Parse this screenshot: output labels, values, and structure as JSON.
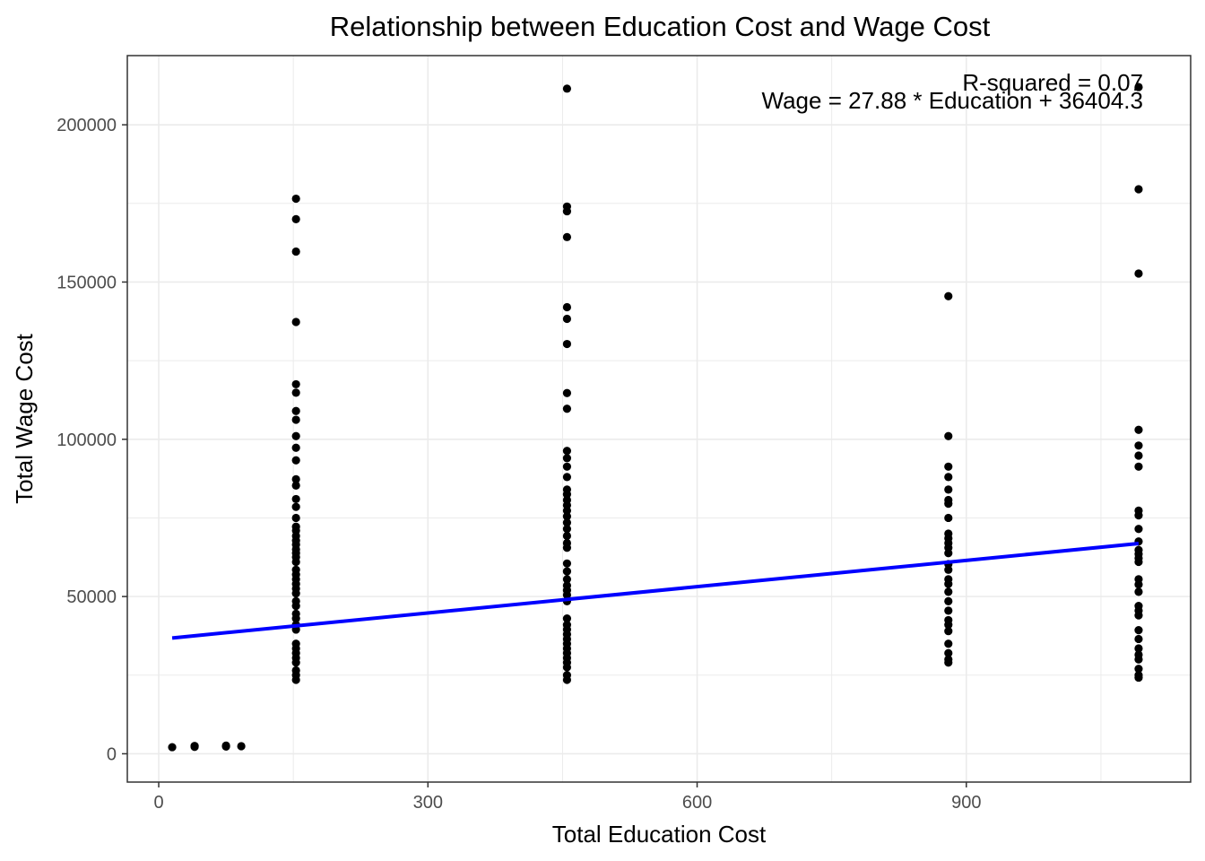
{
  "chart_data": {
    "type": "scatter",
    "title": "Relationship between Education Cost and Wage Cost",
    "xlabel": "Total Education Cost",
    "ylabel": "Total Wage Cost",
    "xlim": [
      -35,
      1150
    ],
    "ylim": [
      -9000,
      222000
    ],
    "x_ticks": [
      0,
      300,
      600,
      900
    ],
    "y_ticks": [
      0,
      50000,
      100000,
      150000,
      200000
    ],
    "grid": true,
    "annotations": {
      "r_squared": "R-squared = 0.07",
      "equation": "Wage = 27.88 * Education + 36404.3"
    },
    "colors": {
      "points": "#000000",
      "fit_line": "#0000ff",
      "grid": "#ebebeb",
      "panel_border": "#333333"
    },
    "fit_line": {
      "slope": 27.88,
      "intercept": 36404.3,
      "x_range": [
        15,
        1092
      ]
    },
    "series": [
      {
        "points": [
          [
            15,
            2100
          ],
          [
            40,
            2200
          ],
          [
            40,
            2500
          ],
          [
            75,
            2300
          ],
          [
            75,
            2600
          ],
          [
            92,
            2400
          ],
          [
            153,
            176500
          ],
          [
            153,
            170000
          ],
          [
            153,
            159700
          ],
          [
            153,
            137300
          ],
          [
            153,
            117500
          ],
          [
            153,
            114800
          ],
          [
            153,
            109000
          ],
          [
            153,
            106200
          ],
          [
            153,
            101000
          ],
          [
            153,
            97300
          ],
          [
            153,
            93300
          ],
          [
            153,
            87300
          ],
          [
            153,
            85300
          ],
          [
            153,
            81000
          ],
          [
            153,
            78500
          ],
          [
            153,
            75000
          ],
          [
            153,
            72200
          ],
          [
            153,
            71000
          ],
          [
            153,
            69300
          ],
          [
            153,
            67800
          ],
          [
            153,
            66500
          ],
          [
            153,
            65000
          ],
          [
            153,
            63800
          ],
          [
            153,
            62500
          ],
          [
            153,
            61000
          ],
          [
            153,
            58500
          ],
          [
            153,
            57000
          ],
          [
            153,
            55500
          ],
          [
            153,
            54000
          ],
          [
            153,
            52500
          ],
          [
            153,
            51000
          ],
          [
            153,
            48500
          ],
          [
            153,
            47000
          ],
          [
            153,
            44500
          ],
          [
            153,
            43000
          ],
          [
            153,
            41000
          ],
          [
            153,
            39500
          ],
          [
            153,
            35000
          ],
          [
            153,
            33500
          ],
          [
            153,
            32000
          ],
          [
            153,
            30500
          ],
          [
            153,
            29000
          ],
          [
            153,
            26500
          ],
          [
            153,
            25000
          ],
          [
            153,
            23500
          ],
          [
            455,
            211500
          ],
          [
            455,
            174000
          ],
          [
            455,
            172500
          ],
          [
            455,
            164300
          ],
          [
            455,
            142000
          ],
          [
            455,
            138300
          ],
          [
            455,
            130300
          ],
          [
            455,
            114700
          ],
          [
            455,
            109700
          ],
          [
            455,
            96300
          ],
          [
            455,
            94000
          ],
          [
            455,
            91300
          ],
          [
            455,
            88000
          ],
          [
            455,
            84000
          ],
          [
            455,
            82500
          ],
          [
            455,
            80700
          ],
          [
            455,
            79000
          ],
          [
            455,
            77300
          ],
          [
            455,
            75500
          ],
          [
            455,
            73500
          ],
          [
            455,
            71500
          ],
          [
            455,
            69300
          ],
          [
            455,
            67000
          ],
          [
            455,
            65500
          ],
          [
            455,
            60500
          ],
          [
            455,
            58000
          ],
          [
            455,
            55500
          ],
          [
            455,
            53500
          ],
          [
            455,
            52000
          ],
          [
            455,
            50500
          ],
          [
            455,
            48500
          ],
          [
            455,
            43000
          ],
          [
            455,
            41000
          ],
          [
            455,
            39500
          ],
          [
            455,
            38000
          ],
          [
            455,
            36500
          ],
          [
            455,
            35000
          ],
          [
            455,
            33500
          ],
          [
            455,
            32000
          ],
          [
            455,
            30500
          ],
          [
            455,
            29000
          ],
          [
            455,
            27500
          ],
          [
            455,
            25000
          ],
          [
            455,
            23500
          ],
          [
            880,
            145500
          ],
          [
            880,
            101000
          ],
          [
            880,
            91300
          ],
          [
            880,
            88000
          ],
          [
            880,
            84000
          ],
          [
            880,
            80700
          ],
          [
            880,
            79500
          ],
          [
            880,
            75000
          ],
          [
            880,
            70000
          ],
          [
            880,
            68500
          ],
          [
            880,
            67000
          ],
          [
            880,
            65500
          ],
          [
            880,
            63800
          ],
          [
            880,
            60300
          ],
          [
            880,
            58500
          ],
          [
            880,
            55500
          ],
          [
            880,
            54000
          ],
          [
            880,
            51500
          ],
          [
            880,
            48500
          ],
          [
            880,
            45500
          ],
          [
            880,
            42500
          ],
          [
            880,
            41000
          ],
          [
            880,
            39000
          ],
          [
            880,
            35000
          ],
          [
            880,
            32000
          ],
          [
            880,
            30000
          ],
          [
            880,
            29000
          ],
          [
            1092,
            212000
          ],
          [
            1092,
            179500
          ],
          [
            1092,
            152700
          ],
          [
            1092,
            103000
          ],
          [
            1092,
            98000
          ],
          [
            1092,
            94800
          ],
          [
            1092,
            91300
          ],
          [
            1092,
            77300
          ],
          [
            1092,
            75800
          ],
          [
            1092,
            71500
          ],
          [
            1092,
            67500
          ],
          [
            1092,
            64800
          ],
          [
            1092,
            63500
          ],
          [
            1092,
            62200
          ],
          [
            1092,
            61000
          ],
          [
            1092,
            55500
          ],
          [
            1092,
            53800
          ],
          [
            1092,
            51500
          ],
          [
            1092,
            47000
          ],
          [
            1092,
            45500
          ],
          [
            1092,
            44000
          ],
          [
            1092,
            39300
          ],
          [
            1092,
            36500
          ],
          [
            1092,
            33500
          ],
          [
            1092,
            31500
          ],
          [
            1092,
            30000
          ],
          [
            1092,
            27000
          ],
          [
            1092,
            25000
          ],
          [
            1092,
            24200
          ]
        ]
      }
    ]
  }
}
